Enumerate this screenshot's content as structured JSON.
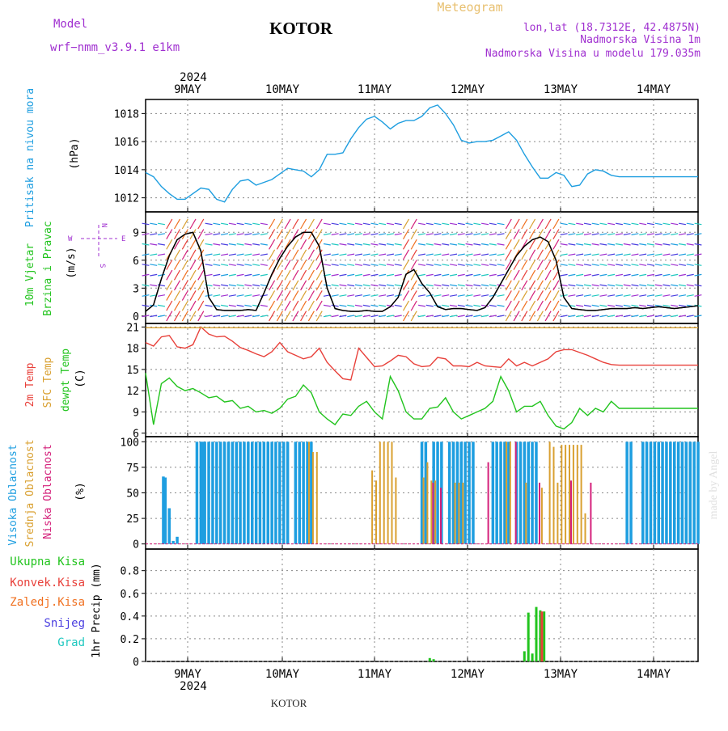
{
  "header": {
    "model_label": "Model",
    "model_name": "wrf−nmm_v3.9.1  e1km",
    "title": "KOTOR",
    "meteogram": "Meteogram",
    "coords": "lon,lat (18.7312E, 42.4875N)",
    "elevation": "Nadmorska Visina 1m",
    "model_elevation": "Nadmorska Visina u modelu 179.035m"
  },
  "footer": {
    "station": "KOTOR",
    "credit": "made by Angel"
  },
  "colors": {
    "pressure": "#1e9ee0",
    "temp": "#e8403a",
    "sfc_temp": "#d9a030",
    "dewpt": "#22c41e",
    "high_cloud": "#1e9ee0",
    "mid_cloud": "#d9a030",
    "low_cloud": "#d4207a",
    "precip_total": "#22c41e",
    "precip_conv": "#e8403a",
    "precip_frz": "#f07020",
    "precip_snow": "#4a3ee0",
    "precip_grad": "#20c8c0",
    "wind_label": "#22c41e",
    "purple": "#a030d0"
  },
  "chart_data": [
    {
      "type": "line",
      "panel": "pressure",
      "top_axis_year": "2024",
      "bottom_axis_year": "2024",
      "day_labels": [
        "9MAY",
        "10MAY",
        "11MAY",
        "12MAY",
        "13MAY",
        "14MAY"
      ],
      "xlim_hours": [
        0,
        140
      ],
      "ylabel_name": "Pritisak na nivou mora",
      "ylabel_unit": "(hPa)",
      "yticks": [
        1012,
        1014,
        1016,
        1018
      ],
      "ylim": [
        1011.0,
        1019.0
      ],
      "series": [
        {
          "name": "Pritisak na nivou mora",
          "color_key": "pressure",
          "x": [
            0,
            2,
            4,
            6,
            8,
            10,
            12,
            14,
            16,
            18,
            20,
            22,
            24,
            26,
            28,
            30,
            32,
            34,
            36,
            38,
            40,
            42,
            44,
            46,
            48,
            50,
            52,
            54,
            56,
            58,
            60,
            62,
            64,
            66,
            68,
            70,
            72,
            74,
            76,
            78,
            80,
            82,
            84,
            86,
            88,
            90,
            92,
            94,
            96,
            98,
            100,
            102,
            104,
            106,
            108,
            110,
            112,
            114,
            116,
            118,
            120,
            122,
            124,
            126,
            128,
            130,
            132,
            134,
            136,
            138,
            140
          ],
          "y": [
            1013.8,
            1013.5,
            1012.8,
            1012.3,
            1011.9,
            1011.9,
            1012.3,
            1012.7,
            1012.6,
            1011.9,
            1011.7,
            1012.6,
            1013.2,
            1013.3,
            1012.9,
            1013.1,
            1013.3,
            1013.7,
            1014.1,
            1014.0,
            1013.9,
            1013.5,
            1014.0,
            1015.1,
            1015.1,
            1015.2,
            1016.2,
            1017.0,
            1017.6,
            1017.8,
            1017.4,
            1016.9,
            1017.3,
            1017.5,
            1017.5,
            1017.8,
            1018.4,
            1018.6,
            1018.0,
            1017.2,
            1016.1,
            1015.9,
            1016.0,
            1016.0,
            1016.1,
            1016.4,
            1016.7,
            1016.1,
            1015.1,
            1014.2,
            1013.4,
            1013.4,
            1013.8,
            1013.6,
            1012.8,
            1012.9,
            1013.7,
            1014.0,
            1013.9,
            1013.6,
            1013.5,
            1013.5,
            1013.5,
            1013.5,
            1013.5,
            1013.5,
            1013.5,
            1013.5,
            1013.5,
            1013.5,
            1013.5
          ]
        }
      ]
    },
    {
      "type": "line",
      "panel": "wind",
      "ylabel_name_1": "10m Vjetar",
      "ylabel_name_2": "Brzina i Pravac",
      "ylabel_unit": "(m/s)",
      "compass": {
        "north": "N",
        "west": "W",
        "east": "E",
        "south": "S"
      },
      "yticks": [
        0,
        3,
        6,
        9
      ],
      "ylim": [
        -0.8,
        11.2
      ],
      "series": [
        {
          "name": "speed",
          "color": "#000000",
          "x": [
            0,
            2,
            4,
            6,
            8,
            10,
            12,
            14,
            16,
            18,
            20,
            22,
            24,
            26,
            28,
            30,
            32,
            34,
            36,
            38,
            40,
            42,
            44,
            46,
            48,
            50,
            52,
            54,
            56,
            58,
            60,
            62,
            64,
            66,
            68,
            70,
            72,
            74,
            76,
            78,
            80,
            82,
            84,
            86,
            88,
            90,
            92,
            94,
            96,
            98,
            100,
            102,
            104,
            106,
            108,
            110,
            112,
            114,
            116,
            118,
            120,
            122,
            124,
            126,
            128,
            130,
            132,
            134,
            136,
            138,
            140
          ],
          "y": [
            0.5,
            1.2,
            4.0,
            6.5,
            8.2,
            8.8,
            9.0,
            7.0,
            2.0,
            0.7,
            0.6,
            0.6,
            0.6,
            0.7,
            0.6,
            2.5,
            4.5,
            6.2,
            7.5,
            8.5,
            9.0,
            9.0,
            7.5,
            3.0,
            0.8,
            0.6,
            0.5,
            0.5,
            0.6,
            0.5,
            0.5,
            1.0,
            2.0,
            4.5,
            5.0,
            3.5,
            2.5,
            1.0,
            0.7,
            0.8,
            0.8,
            0.7,
            0.6,
            0.9,
            2.0,
            3.5,
            5.0,
            6.5,
            7.5,
            8.2,
            8.5,
            8.0,
            6.0,
            2.0,
            0.8,
            0.7,
            0.6,
            0.6,
            0.7,
            0.8,
            0.8,
            0.8,
            0.9,
            0.8,
            0.9,
            1.0,
            0.9,
            0.8,
            0.9,
            1.0,
            1.1
          ]
        }
      ]
    },
    {
      "type": "line",
      "panel": "temperature",
      "ylabel_name_1": "2m Temp",
      "ylabel_name_2": "SFC Temp",
      "ylabel_name_3": "dewpt Temp",
      "ylabel_unit": "(C)",
      "yticks": [
        6,
        9,
        12,
        15,
        18,
        21
      ],
      "ylim": [
        5.5,
        21.5
      ],
      "series": [
        {
          "name": "2m Temp",
          "color_key": "temp",
          "x": [
            0,
            2,
            4,
            6,
            8,
            10,
            12,
            14,
            16,
            18,
            20,
            22,
            24,
            26,
            28,
            30,
            32,
            34,
            36,
            38,
            40,
            42,
            44,
            46,
            48,
            50,
            52,
            54,
            56,
            58,
            60,
            62,
            64,
            66,
            68,
            70,
            72,
            74,
            76,
            78,
            80,
            82,
            84,
            86,
            88,
            90,
            92,
            94,
            96,
            98,
            100,
            102,
            104,
            106,
            108,
            110,
            112,
            114,
            116,
            118,
            120,
            122,
            124,
            126,
            128,
            130,
            132,
            134,
            136,
            138,
            140
          ],
          "y": [
            18.8,
            18.3,
            19.6,
            19.8,
            18.2,
            18.0,
            18.5,
            21.0,
            20.0,
            19.6,
            19.7,
            19.0,
            18.1,
            17.7,
            17.2,
            16.8,
            17.5,
            18.8,
            17.5,
            17.0,
            16.5,
            16.8,
            18.0,
            16.0,
            14.8,
            13.7,
            13.5,
            18.0,
            16.7,
            15.4,
            15.5,
            16.2,
            17.0,
            16.8,
            15.8,
            15.4,
            15.5,
            16.7,
            16.5,
            15.5,
            15.5,
            15.4,
            16.0,
            15.5,
            15.4,
            15.3,
            16.5,
            15.5,
            16.0,
            15.5,
            16.0,
            16.5,
            17.5,
            17.8,
            17.8,
            17.4,
            17.0,
            16.5,
            16.0,
            15.7,
            15.6,
            15.6,
            15.6,
            15.6,
            15.6,
            15.6,
            15.6,
            15.6,
            15.6,
            15.6,
            15.6
          ]
        },
        {
          "name": "SFC Temp",
          "color_key": "sfc_temp",
          "x": [
            0,
            140
          ],
          "y": [
            20.9,
            20.9
          ]
        },
        {
          "name": "dewpt Temp",
          "color_key": "dewpt",
          "x": [
            0,
            2,
            4,
            6,
            8,
            10,
            12,
            14,
            16,
            18,
            20,
            22,
            24,
            26,
            28,
            30,
            32,
            34,
            36,
            38,
            40,
            42,
            44,
            46,
            48,
            50,
            52,
            54,
            56,
            58,
            60,
            62,
            64,
            66,
            68,
            70,
            72,
            74,
            76,
            78,
            80,
            82,
            84,
            86,
            88,
            90,
            92,
            94,
            96,
            98,
            100,
            102,
            104,
            106,
            108,
            110,
            112,
            114,
            116,
            118,
            120,
            122,
            124,
            126,
            128,
            130,
            132,
            134,
            136,
            138,
            140
          ],
          "y": [
            14.5,
            7.2,
            13.0,
            13.8,
            12.6,
            12.0,
            12.3,
            11.7,
            11.0,
            11.2,
            10.4,
            10.6,
            9.5,
            9.8,
            9.0,
            9.2,
            8.8,
            9.5,
            10.8,
            11.2,
            12.8,
            11.7,
            9.0,
            8.0,
            7.2,
            8.7,
            8.5,
            9.8,
            10.5,
            9.0,
            8.0,
            14.0,
            12.0,
            9.0,
            8.0,
            8.0,
            9.5,
            9.7,
            11.0,
            9.0,
            8.0,
            8.5,
            9.0,
            9.5,
            10.5,
            14.0,
            12.0,
            9.0,
            9.8,
            9.8,
            10.5,
            8.5,
            7.0,
            6.6,
            7.5,
            9.5,
            8.5,
            9.5,
            9.0,
            10.5,
            9.5,
            9.5,
            9.5,
            9.5,
            9.5,
            9.5,
            9.5,
            9.5,
            9.5,
            9.5,
            9.5
          ]
        }
      ]
    },
    {
      "type": "bar",
      "panel": "clouds",
      "ylabel_name_1": "Visoka Oblacnost",
      "ylabel_name_2": "Srednja Oblacnost",
      "ylabel_name_3": "Niska  Oblacnost",
      "ylabel_unit": "(%)",
      "yticks": [
        0,
        25,
        50,
        75,
        100
      ],
      "ylim": [
        -5,
        105
      ],
      "series": [
        {
          "name": "Visoka Oblacnost",
          "color_key": "high_cloud",
          "x": [
            4.5,
            5,
            6,
            7,
            8,
            13,
            14,
            14.5,
            15,
            16,
            17,
            18,
            19,
            20,
            21,
            22,
            23,
            24,
            25,
            26,
            27,
            28,
            29,
            30,
            31,
            32,
            33,
            34,
            35,
            36,
            38,
            39,
            40,
            41,
            42,
            70,
            71,
            73,
            74,
            75,
            77,
            78,
            79,
            80,
            81,
            82,
            83,
            88,
            89,
            90,
            91,
            92,
            94,
            95,
            96,
            97,
            98,
            99,
            122,
            123,
            126,
            127,
            128,
            129,
            130,
            131,
            132,
            133,
            134,
            135,
            136,
            137,
            138,
            139,
            140
          ],
          "y": [
            66,
            65,
            35,
            3,
            7,
            100,
            100,
            100,
            100,
            100,
            100,
            100,
            100,
            100,
            100,
            100,
            100,
            100,
            100,
            100,
            100,
            100,
            100,
            100,
            100,
            100,
            100,
            100,
            100,
            100,
            100,
            100,
            100,
            100,
            100,
            100,
            100,
            100,
            100,
            100,
            100,
            100,
            100,
            100,
            100,
            100,
            100,
            100,
            100,
            100,
            100,
            100,
            100,
            100,
            100,
            100,
            100,
            100,
            100,
            100,
            100,
            100,
            100,
            100,
            100,
            100,
            100,
            100,
            100,
            100,
            100,
            100,
            100,
            100,
            100
          ]
        },
        {
          "name": "Srednja Oblacnost",
          "color_key": "mid_cloud",
          "x": [
            41,
            42,
            43,
            57,
            58,
            59,
            60,
            61,
            62,
            63,
            70,
            71,
            72,
            73,
            78,
            79,
            80,
            91,
            92,
            96,
            100,
            102,
            103,
            104,
            105,
            106,
            107,
            108,
            109,
            110,
            111
          ],
          "y": [
            100,
            90,
            90,
            72,
            62,
            100,
            100,
            100,
            100,
            65,
            65,
            80,
            62,
            62,
            60,
            60,
            60,
            100,
            100,
            60,
            55,
            100,
            95,
            60,
            97,
            97,
            97,
            97,
            97,
            97,
            30
          ]
        },
        {
          "name": "Niska  Oblacnost",
          "color_key": "low_cloud",
          "x": [
            72,
            74,
            86,
            93,
            99,
            107,
            112
          ],
          "y": [
            60,
            55,
            80,
            100,
            60,
            62,
            60
          ]
        }
      ]
    },
    {
      "type": "bar",
      "panel": "precipitation",
      "legend": [
        "Ukupna  Kisa",
        "Konvek.Kisa",
        "Zaledj.Kisa",
        "Snijeg",
        "Grad"
      ],
      "ylabel": "1hr Precip (mm)",
      "yticks": [
        0,
        0.2,
        0.4,
        0.6,
        0.8
      ],
      "ylim": [
        0,
        0.99
      ],
      "series": [
        {
          "name": "Ukupna  Kisa",
          "color_key": "precip_total",
          "x": [
            72,
            73,
            96,
            97,
            98,
            99,
            100,
            101
          ],
          "y": [
            0.03,
            0.02,
            0.09,
            0.43,
            0.07,
            0.48,
            0.45,
            0.44
          ]
        },
        {
          "name": "Konvek.Kisa",
          "color_key": "precip_conv",
          "x": [
            100
          ],
          "y": [
            0.44
          ]
        }
      ]
    }
  ]
}
